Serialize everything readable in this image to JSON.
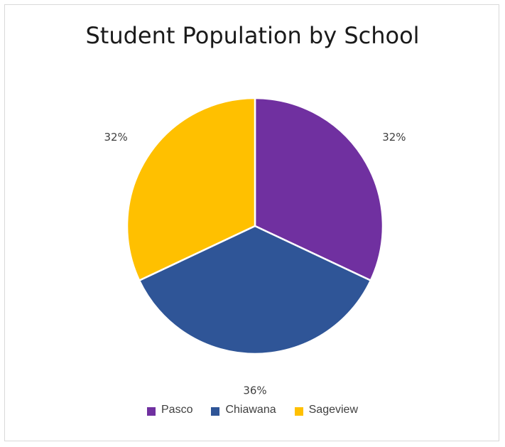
{
  "chart_data": {
    "type": "pie",
    "title": "Student Population by School",
    "categories": [
      "Pasco",
      "Chiawana",
      "Sageview"
    ],
    "values": [
      32,
      36,
      32
    ],
    "data_labels": [
      "32%",
      "36%",
      "32%"
    ],
    "colors": [
      "#7030a0",
      "#2f5597",
      "#ffc000"
    ],
    "legend_position": "bottom",
    "start_angle_deg": 0,
    "direction": "clockwise"
  }
}
